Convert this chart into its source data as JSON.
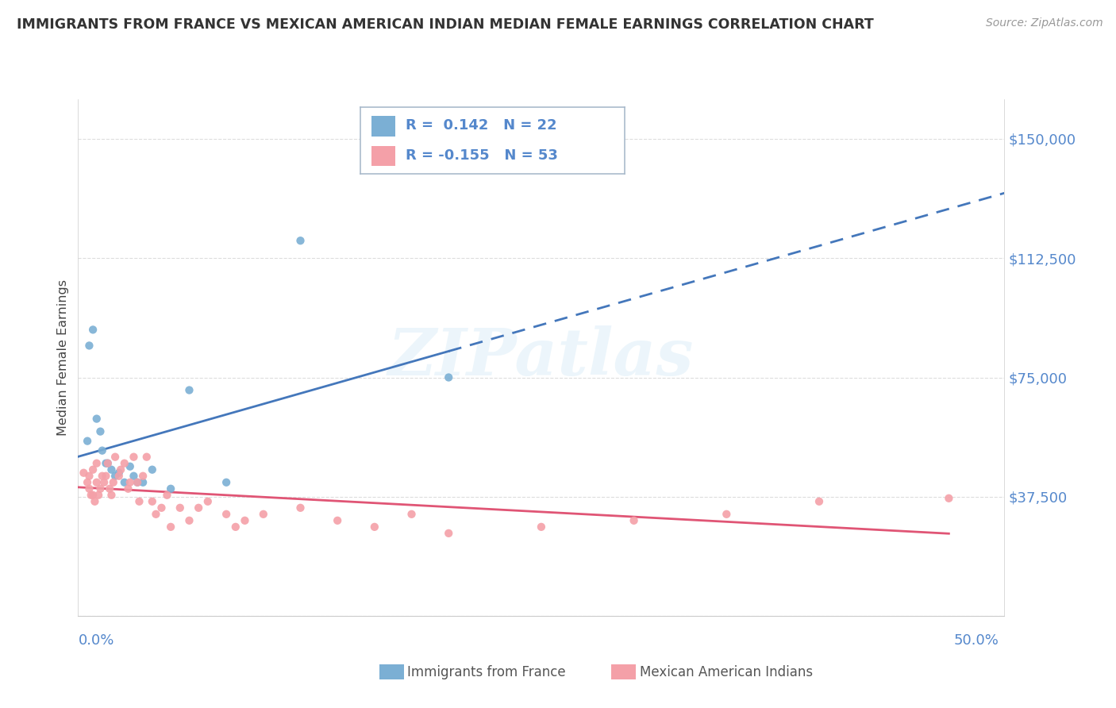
{
  "title": "IMMIGRANTS FROM FRANCE VS MEXICAN AMERICAN INDIAN MEDIAN FEMALE EARNINGS CORRELATION CHART",
  "source": "Source: ZipAtlas.com",
  "ylabel": "Median Female Earnings",
  "yticks": [
    0,
    37500,
    75000,
    112500,
    150000
  ],
  "ytick_labels": [
    "",
    "$37,500",
    "$75,000",
    "$112,500",
    "$150,000"
  ],
  "xlim": [
    0.0,
    0.5
  ],
  "ylim": [
    0,
    162500
  ],
  "blue_R": "0.142",
  "blue_N": "22",
  "pink_R": "-0.155",
  "pink_N": "53",
  "blue_color": "#7BAFD4",
  "pink_color": "#F4A0A8",
  "trend_blue_solid_color": "#4477BB",
  "trend_blue_dash_color": "#4477BB",
  "trend_pink_color": "#E05575",
  "watermark_text": "ZIPatlas",
  "watermark_color": "#DDEEFF",
  "legend_label_blue": "Immigrants from France",
  "legend_label_pink": "Mexican American Indians",
  "tick_color": "#5588CC",
  "ylabel_color": "#444444",
  "title_color": "#333333",
  "source_color": "#999999",
  "grid_color": "#DDDDDD",
  "spine_color": "#CCCCCC",
  "blue_scatter_x": [
    0.005,
    0.006,
    0.008,
    0.01,
    0.012,
    0.013,
    0.015,
    0.016,
    0.018,
    0.02,
    0.022,
    0.025,
    0.028,
    0.03,
    0.032,
    0.035,
    0.04,
    0.05,
    0.06,
    0.08,
    0.12,
    0.2
  ],
  "blue_scatter_y": [
    55000,
    85000,
    90000,
    62000,
    58000,
    52000,
    48000,
    48000,
    46000,
    44000,
    45000,
    42000,
    47000,
    44000,
    42000,
    42000,
    46000,
    40000,
    71000,
    42000,
    118000,
    75000
  ],
  "pink_scatter_x": [
    0.003,
    0.005,
    0.006,
    0.006,
    0.007,
    0.008,
    0.008,
    0.009,
    0.01,
    0.01,
    0.011,
    0.012,
    0.013,
    0.014,
    0.015,
    0.016,
    0.017,
    0.018,
    0.019,
    0.02,
    0.022,
    0.023,
    0.025,
    0.027,
    0.028,
    0.03,
    0.032,
    0.033,
    0.035,
    0.037,
    0.04,
    0.042,
    0.045,
    0.048,
    0.05,
    0.055,
    0.06,
    0.065,
    0.07,
    0.08,
    0.085,
    0.09,
    0.1,
    0.12,
    0.14,
    0.16,
    0.18,
    0.2,
    0.25,
    0.3,
    0.35,
    0.4,
    0.47
  ],
  "pink_scatter_y": [
    45000,
    42000,
    40000,
    44000,
    38000,
    38000,
    46000,
    36000,
    42000,
    48000,
    38000,
    40000,
    44000,
    42000,
    44000,
    48000,
    40000,
    38000,
    42000,
    50000,
    44000,
    46000,
    48000,
    40000,
    42000,
    50000,
    42000,
    36000,
    44000,
    50000,
    36000,
    32000,
    34000,
    38000,
    28000,
    34000,
    30000,
    34000,
    36000,
    32000,
    28000,
    30000,
    32000,
    34000,
    30000,
    28000,
    32000,
    26000,
    28000,
    30000,
    32000,
    36000,
    37000
  ]
}
